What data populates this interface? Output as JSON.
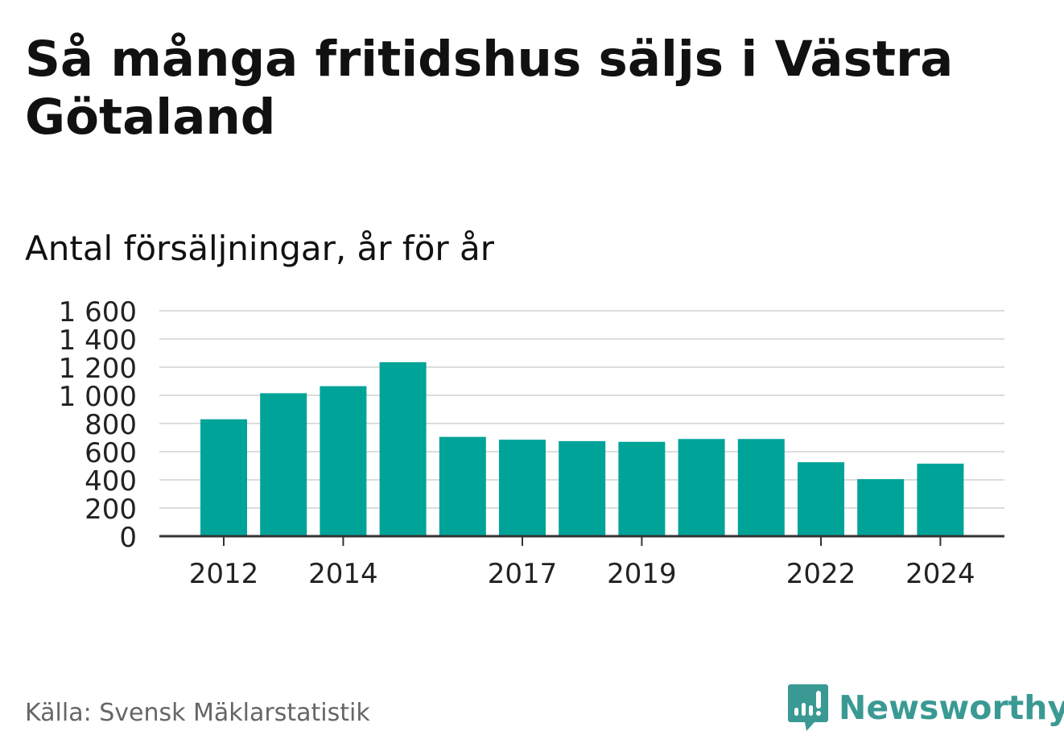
{
  "title": "Så många fritidshus säljs i Västra Götaland",
  "subtitle": "Antal försäljningar, år för år",
  "source": "Källa: Svensk Mäklarstatistik",
  "brand": {
    "name": "Newsworthy",
    "icon": "newsworthy-logo-icon"
  },
  "colors": {
    "bar": "#00a398",
    "grid": "#dddddd",
    "axis": "#333333",
    "brand": "#3a9a93"
  },
  "chart_data": {
    "type": "bar",
    "categories": [
      "2012",
      "2013",
      "2014",
      "2015",
      "2016",
      "2017",
      "2018",
      "2019",
      "2020",
      "2021",
      "2022",
      "2023",
      "2024"
    ],
    "values": [
      830,
      1015,
      1065,
      1235,
      705,
      685,
      675,
      670,
      690,
      690,
      525,
      405,
      515
    ],
    "x_tick_labels": [
      "2012",
      "2014",
      "2017",
      "2019",
      "2022",
      "2024"
    ],
    "y_ticks": [
      0,
      200,
      400,
      600,
      800,
      1000,
      1200,
      1400,
      1600
    ],
    "y_tick_labels": [
      "0",
      "200",
      "400",
      "600",
      "800",
      "1 000",
      "1 200",
      "1 400",
      "1 600"
    ],
    "ylim": [
      0,
      1600
    ],
    "grid": true,
    "legend": "none",
    "title": "Så många fritidshus säljs i Västra Götaland",
    "subtitle": "Antal försäljningar, år för år",
    "xlabel": "",
    "ylabel": ""
  }
}
